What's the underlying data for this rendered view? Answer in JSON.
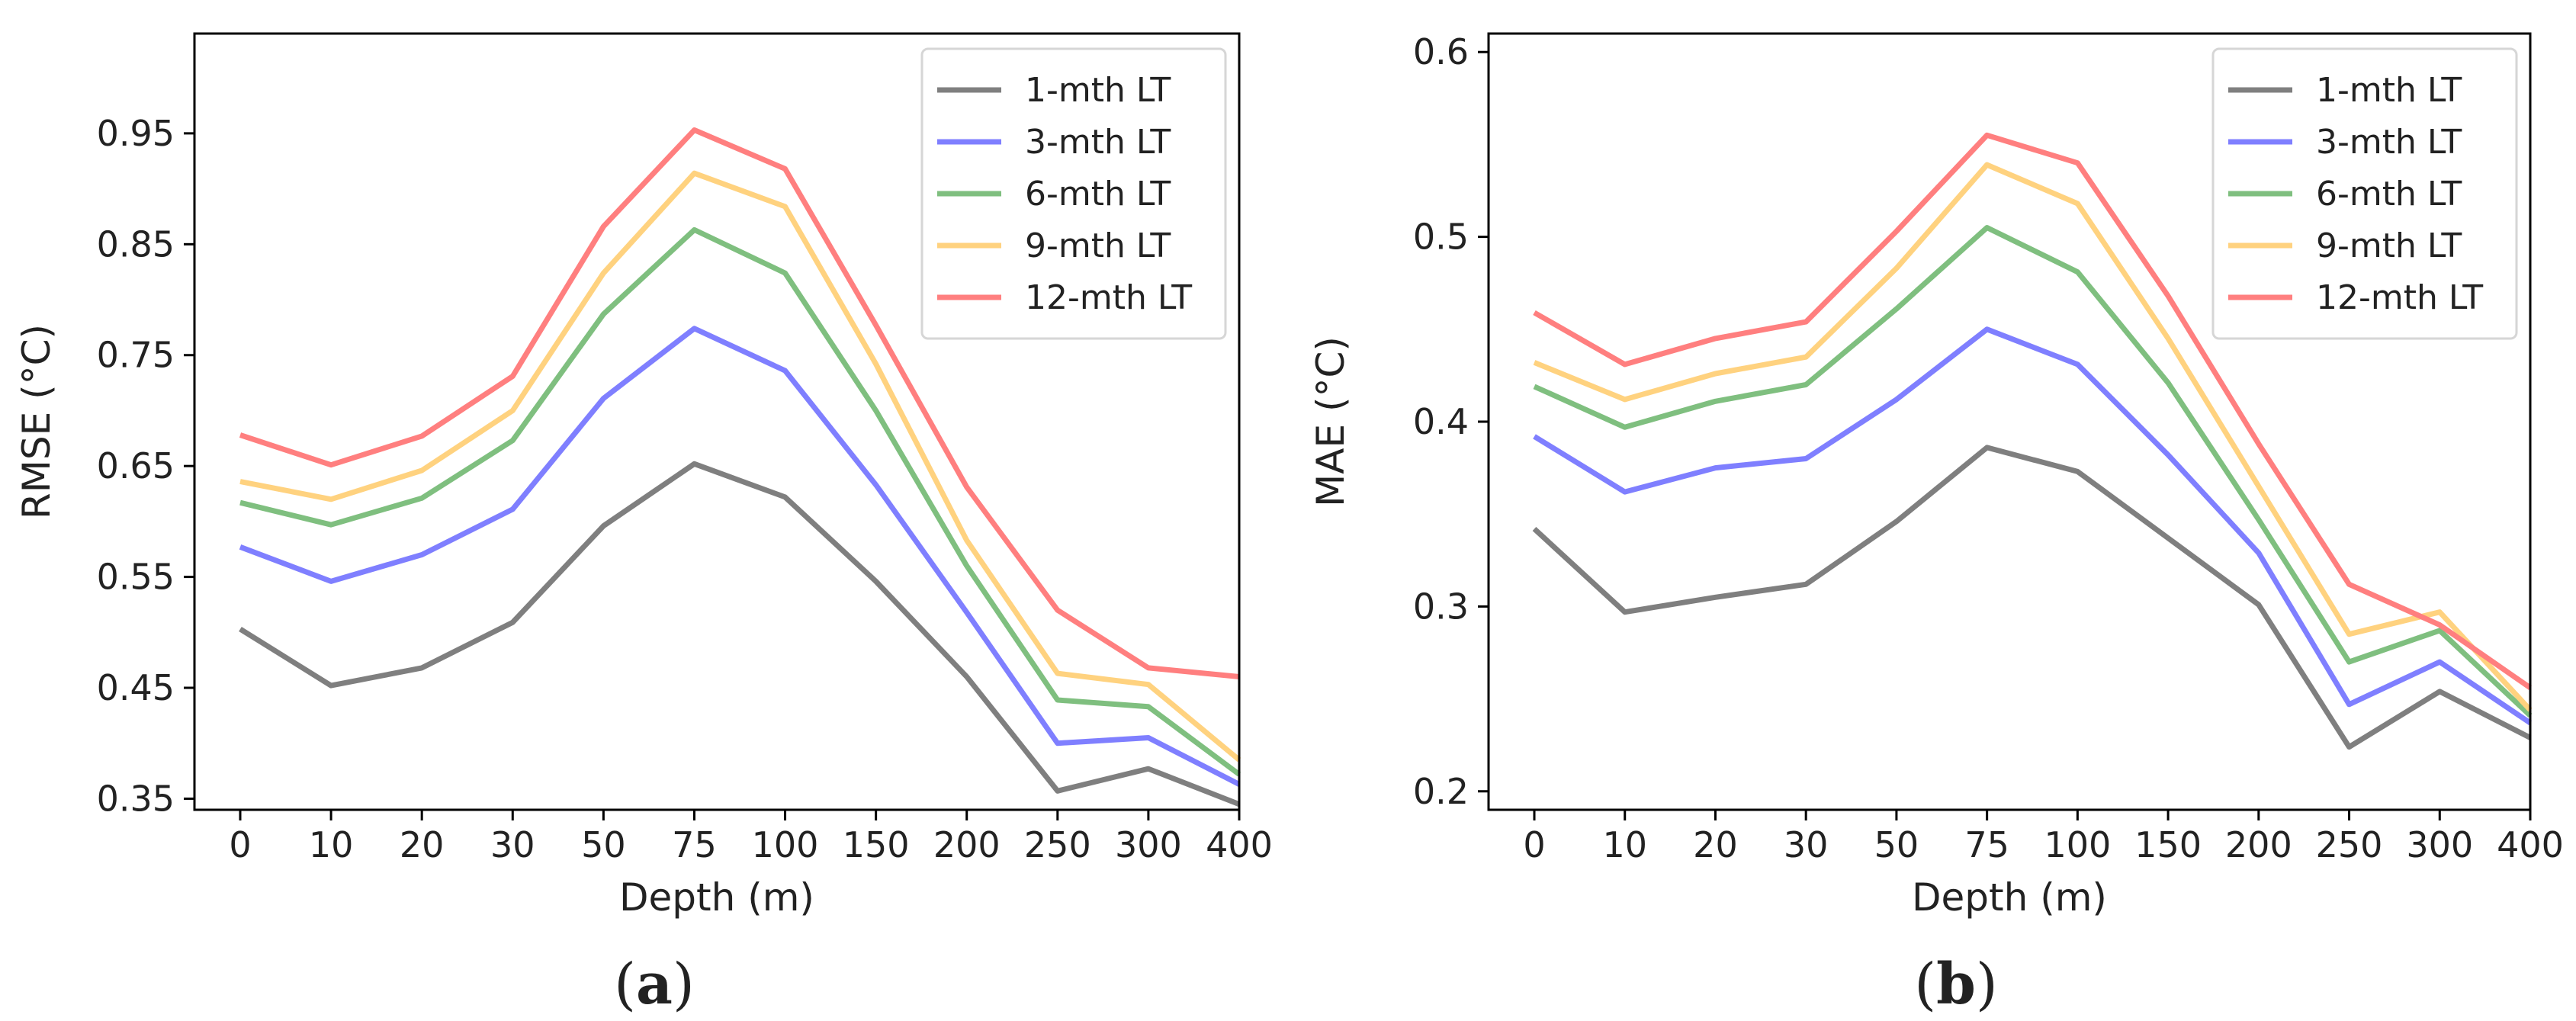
{
  "chart_data": [
    {
      "type": "line",
      "panel_label": "(a)",
      "panel_open": "(",
      "panel_letter": "a",
      "panel_close": ")",
      "xlabel": "Depth (m)",
      "ylabel": "RMSE (°C)",
      "categories": [
        "0",
        "10",
        "20",
        "30",
        "50",
        "75",
        "100",
        "150",
        "200",
        "250",
        "300",
        "400"
      ],
      "ylim": [
        0.34,
        1.04
      ],
      "yticks": [
        0.35,
        0.45,
        0.55,
        0.65,
        0.75,
        0.85,
        0.95
      ],
      "ytick_labels": [
        "0.35",
        "0.45",
        "0.55",
        "0.65",
        "0.75",
        "0.85",
        "0.95"
      ],
      "legend_position": "top-right",
      "series": [
        {
          "name": "1-mth LT",
          "color": "#7f7f7f",
          "values": [
            0.503,
            0.452,
            0.468,
            0.509,
            0.596,
            0.652,
            0.622,
            0.546,
            0.46,
            0.357,
            0.377,
            0.345
          ]
        },
        {
          "name": "3-mth LT",
          "color": "#7f7fff",
          "values": [
            0.577,
            0.546,
            0.57,
            0.611,
            0.711,
            0.774,
            0.736,
            0.633,
            0.518,
            0.4,
            0.405,
            0.363
          ]
        },
        {
          "name": "6-mth LT",
          "color": "#7fbf7f",
          "values": [
            0.617,
            0.597,
            0.621,
            0.673,
            0.787,
            0.863,
            0.824,
            0.7,
            0.56,
            0.439,
            0.433,
            0.372
          ]
        },
        {
          "name": "9-mth LT",
          "color": "#ffd27f",
          "values": [
            0.636,
            0.62,
            0.646,
            0.7,
            0.824,
            0.914,
            0.884,
            0.742,
            0.583,
            0.463,
            0.453,
            0.385
          ]
        },
        {
          "name": "12-mth LT",
          "color": "#ff7f7f",
          "values": [
            0.678,
            0.651,
            0.677,
            0.731,
            0.866,
            0.953,
            0.918,
            0.777,
            0.631,
            0.52,
            0.468,
            0.46
          ]
        }
      ]
    },
    {
      "type": "line",
      "panel_label": "(b)",
      "panel_open": "(",
      "panel_letter": "b",
      "panel_close": ")",
      "xlabel": "Depth (m)",
      "ylabel": "MAE (°C)",
      "categories": [
        "0",
        "10",
        "20",
        "30",
        "50",
        "75",
        "100",
        "150",
        "200",
        "250",
        "300",
        "400"
      ],
      "ylim": [
        0.19,
        0.61
      ],
      "yticks": [
        0.2,
        0.3,
        0.4,
        0.5,
        0.6
      ],
      "ytick_labels": [
        "0.2",
        "0.3",
        "0.4",
        "0.5",
        "0.6"
      ],
      "legend_position": "top-right",
      "series": [
        {
          "name": "1-mth LT",
          "color": "#7f7f7f",
          "values": [
            0.342,
            0.297,
            0.305,
            0.312,
            0.346,
            0.386,
            0.373,
            0.337,
            0.301,
            0.224,
            0.254,
            0.229
          ]
        },
        {
          "name": "3-mth LT",
          "color": "#7f7fff",
          "values": [
            0.392,
            0.362,
            0.375,
            0.38,
            0.412,
            0.45,
            0.431,
            0.382,
            0.329,
            0.247,
            0.27,
            0.237
          ]
        },
        {
          "name": "6-mth LT",
          "color": "#7fbf7f",
          "values": [
            0.419,
            0.397,
            0.411,
            0.42,
            0.461,
            0.505,
            0.481,
            0.421,
            0.347,
            0.27,
            0.287,
            0.241
          ]
        },
        {
          "name": "9-mth LT",
          "color": "#ffd27f",
          "values": [
            0.432,
            0.412,
            0.426,
            0.435,
            0.483,
            0.539,
            0.518,
            0.445,
            0.365,
            0.285,
            0.297,
            0.244
          ]
        },
        {
          "name": "12-mth LT",
          "color": "#ff7f7f",
          "values": [
            0.459,
            0.431,
            0.445,
            0.454,
            0.503,
            0.555,
            0.54,
            0.468,
            0.388,
            0.312,
            0.29,
            0.256
          ]
        }
      ]
    }
  ]
}
